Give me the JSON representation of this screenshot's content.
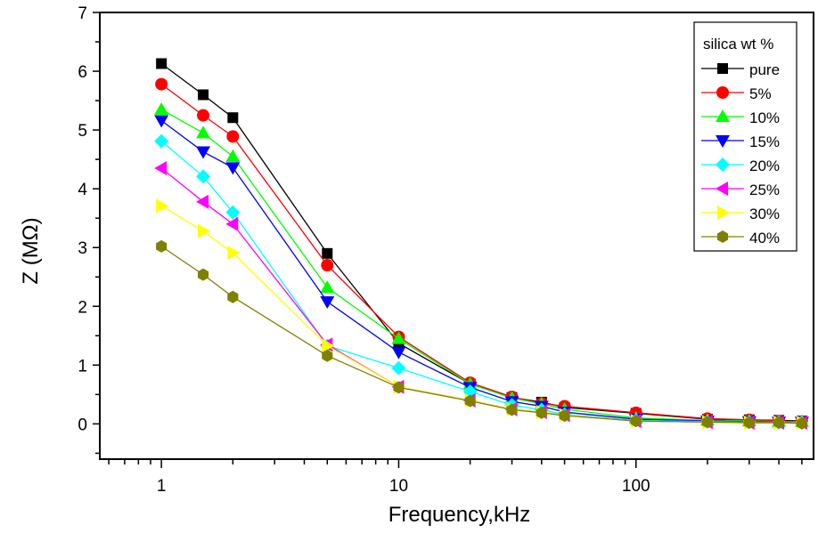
{
  "chart_data": {
    "type": "line",
    "title": "",
    "xlabel": "Frequency,kHz",
    "ylabel": "Z (MΩ)",
    "xscale": "log",
    "xlim": [
      0.55,
      560
    ],
    "ylim": [
      -0.6,
      7
    ],
    "x_tick_labels": [
      "1",
      "10",
      "100"
    ],
    "x_tick_values": [
      1,
      10,
      100
    ],
    "y_tick_labels": [
      "0",
      "1",
      "2",
      "3",
      "4",
      "5",
      "6",
      "7"
    ],
    "y_tick_values": [
      0,
      1,
      2,
      3,
      4,
      5,
      6,
      7
    ],
    "grid": false,
    "legend": {
      "title": "silica wt %",
      "position": "top-right"
    },
    "x": [
      1,
      1.5,
      2,
      5,
      10,
      20,
      30,
      40,
      50,
      100,
      200,
      300,
      400,
      500
    ],
    "series": [
      {
        "name": "pure",
        "color": "#000000",
        "marker": "square",
        "values": [
          6.13,
          5.6,
          5.21,
          2.9,
          1.37,
          0.68,
          0.45,
          0.37,
          0.28,
          0.18,
          0.08,
          0.07,
          0.06,
          0.05
        ]
      },
      {
        "name": "5%",
        "color": "#ff0000",
        "marker": "circle",
        "values": [
          5.78,
          5.25,
          4.89,
          2.7,
          1.48,
          0.7,
          0.46,
          0.35,
          0.3,
          0.19,
          0.09,
          0.07,
          0.05,
          0.04
        ]
      },
      {
        "name": "10%",
        "color": "#00ff00",
        "marker": "triangle-up",
        "values": [
          5.35,
          4.95,
          4.55,
          2.32,
          1.45,
          0.68,
          0.44,
          0.34,
          0.25,
          0.1,
          0.06,
          0.05,
          0.04,
          0.04
        ]
      },
      {
        "name": "15%",
        "color": "#0000ff",
        "marker": "triangle-down",
        "values": [
          5.16,
          4.63,
          4.36,
          2.08,
          1.22,
          0.62,
          0.38,
          0.3,
          0.2,
          0.08,
          0.05,
          0.04,
          0.03,
          0.03
        ]
      },
      {
        "name": "20%",
        "color": "#00ffff",
        "marker": "diamond",
        "values": [
          4.81,
          4.21,
          3.6,
          1.33,
          0.95,
          0.55,
          0.32,
          0.24,
          0.16,
          0.06,
          0.04,
          0.03,
          0.02,
          0.02
        ]
      },
      {
        "name": "25%",
        "color": "#ff00ff",
        "marker": "triangle-left",
        "values": [
          4.35,
          3.78,
          3.4,
          1.35,
          0.63,
          0.4,
          0.25,
          0.2,
          0.15,
          0.05,
          0.03,
          0.02,
          0.02,
          0.02
        ]
      },
      {
        "name": "30%",
        "color": "#ffff00",
        "marker": "triangle-right",
        "values": [
          3.71,
          3.28,
          2.91,
          1.33,
          0.63,
          0.4,
          0.25,
          0.2,
          0.15,
          0.05,
          0.03,
          0.02,
          0.02,
          0.02
        ]
      },
      {
        "name": "40%",
        "color": "#808000",
        "marker": "hexagon",
        "values": [
          3.02,
          2.54,
          2.16,
          1.16,
          0.62,
          0.39,
          0.24,
          0.19,
          0.14,
          0.05,
          0.03,
          0.02,
          0.02,
          0.01
        ]
      }
    ]
  }
}
